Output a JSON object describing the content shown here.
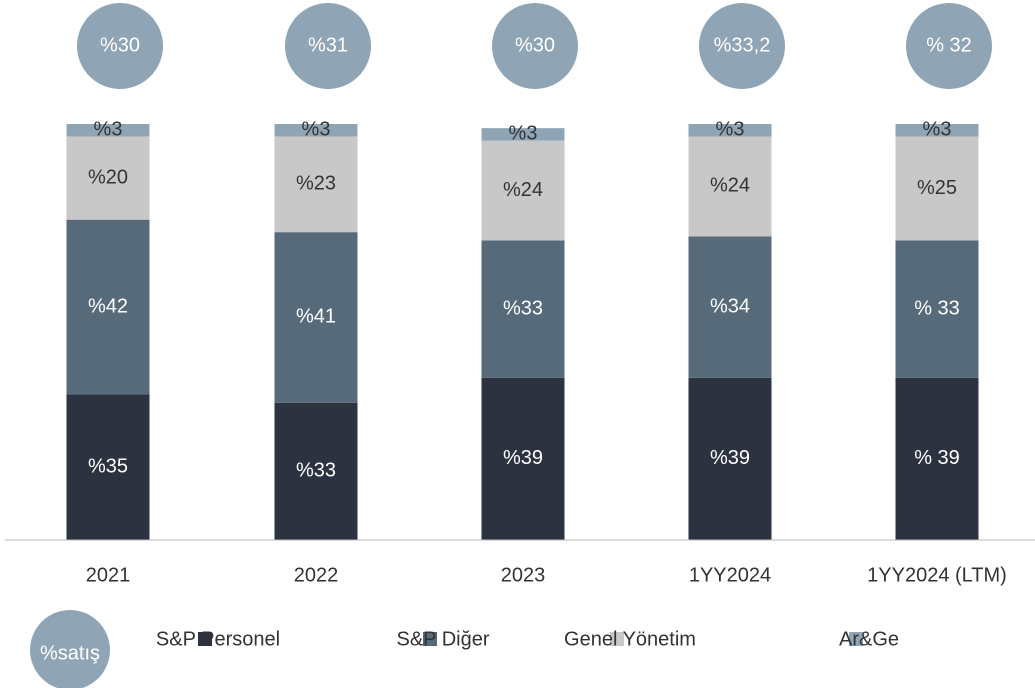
{
  "chart_data": {
    "type": "stacked_bar",
    "categories": [
      "2021",
      "2022",
      "2023",
      "1YY2024",
      "1YY2024 (LTM)"
    ],
    "series": [
      {
        "name": "S&P Personel",
        "color": "#2d3240",
        "values": [
          35,
          33,
          39,
          39,
          39
        ],
        "value_labels": [
          "%35",
          "%33",
          "%39",
          "%39",
          "% 39"
        ]
      },
      {
        "name": "S&P Diğer",
        "color": "#576a79",
        "values": [
          42,
          41,
          33,
          34,
          33
        ],
        "value_labels": [
          "%42",
          "%41",
          "%33",
          "%34",
          "% 33"
        ]
      },
      {
        "name": "Genel Yönetim",
        "color": "#c8c8c8",
        "values": [
          20,
          23,
          24,
          24,
          25
        ],
        "value_labels": [
          "%20",
          "%23",
          "%24",
          "%24",
          "%25"
        ]
      },
      {
        "name": "Ar&Ge",
        "color": "#8fa5b5",
        "values": [
          3,
          3,
          3,
          3,
          3
        ],
        "value_labels": [
          "%3",
          "%3",
          "%3",
          "%3",
          "%3"
        ]
      }
    ],
    "bubbles": {
      "name": "%satış",
      "color": "#8fa5b5",
      "values": [
        30,
        31,
        30,
        33.2,
        32
      ],
      "value_labels": [
        "%30",
        "%31",
        "%30",
        "%33,2",
        "% 32"
      ]
    }
  }
}
